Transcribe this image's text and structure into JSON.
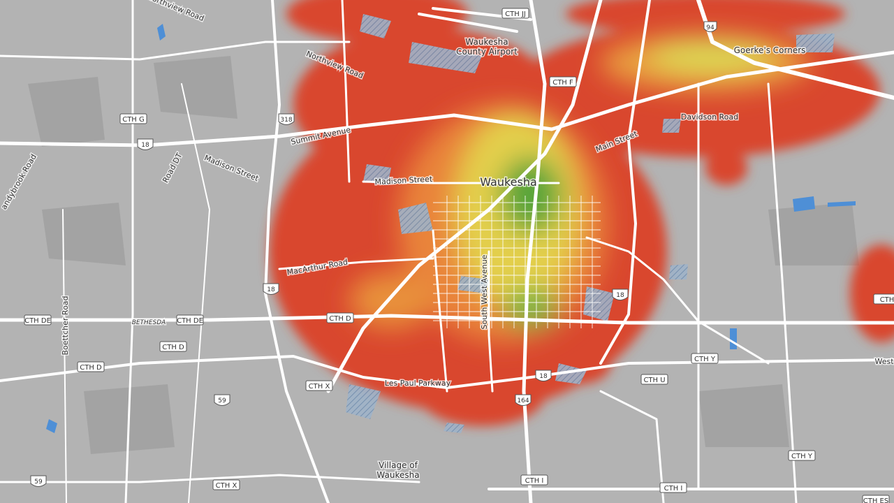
{
  "places": {
    "city": "Waukesha",
    "airport": [
      "Waukesha",
      "County Airport"
    ],
    "village": [
      "Village of",
      "Waukesha"
    ],
    "corners": "Goerke's Corners"
  },
  "road_names": [
    "Northview Road",
    "Northview Road",
    "Summit Avenue",
    "Madison Street",
    "Madison Street",
    "Road DT",
    "andybrook Road",
    "Main Street",
    "MacArthur Road",
    "South West Avenue",
    "Boettcher Road",
    "BETHESDA",
    "Les Paul Parkway",
    "Davidson Road",
    "West"
  ],
  "county_shields": [
    "CTH JJ",
    "CTH F",
    "CTH G",
    "CTH DE",
    "CTH DE",
    "CTH D",
    "CTH D",
    "CTH D",
    "CTH Y",
    "CTH U",
    "CTH X",
    "CTH Y",
    "CTH X",
    "CTH I",
    "CTH I",
    "CTH ES",
    "CTH"
  ],
  "route_shields": [
    "318",
    "18",
    "18",
    "18",
    "18",
    "59",
    "164",
    "59"
  ],
  "interstate_shields": [
    "94"
  ]
}
